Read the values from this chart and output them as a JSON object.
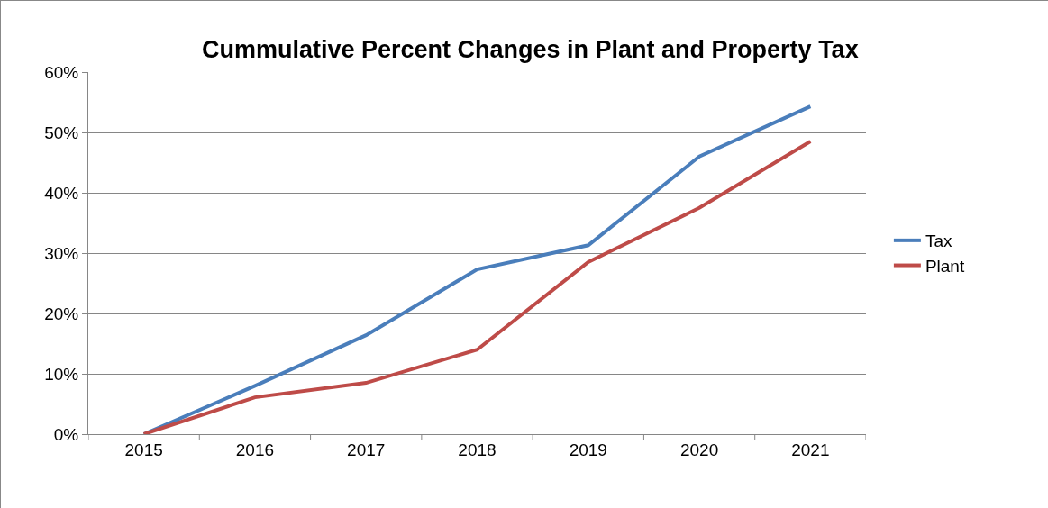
{
  "chart_data": {
    "type": "line",
    "title": "Cummulative Percent Changes in Plant and Property Tax",
    "categories": [
      "2015",
      "2016",
      "2017",
      "2018",
      "2019",
      "2020",
      "2021"
    ],
    "series": [
      {
        "name": "Tax",
        "color": "#4a7ebb",
        "values": [
          0,
          8,
          16.4,
          27.3,
          31.3,
          46,
          54.3
        ]
      },
      {
        "name": "Plant",
        "color": "#be4b48",
        "values": [
          0,
          6.1,
          8.5,
          14,
          28.5,
          37.5,
          48.5
        ]
      }
    ],
    "ylim": [
      0,
      60
    ],
    "yticks": [
      {
        "value": 0,
        "label": "0%"
      },
      {
        "value": 10,
        "label": "10%"
      },
      {
        "value": 20,
        "label": "20%"
      },
      {
        "value": 30,
        "label": "30%"
      },
      {
        "value": 40,
        "label": "40%"
      },
      {
        "value": 50,
        "label": "50%"
      },
      {
        "value": 60,
        "label": "60%"
      }
    ],
    "grid": "y",
    "legend": "right",
    "marker": "none",
    "line_style": "solid"
  }
}
